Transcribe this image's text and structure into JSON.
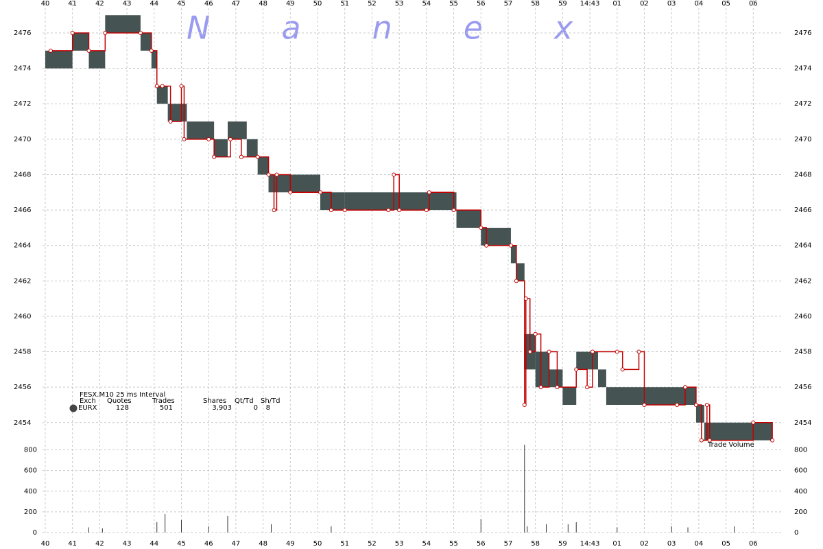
{
  "chart_data": {
    "type": "quote-trade",
    "watermark": "Nanex",
    "grid": true,
    "xlim": [
      39.9,
      67.05
    ],
    "xticks": [
      40,
      41,
      42,
      43,
      44,
      45,
      46,
      47,
      48,
      49,
      50,
      51,
      52,
      53,
      54,
      55,
      56,
      57,
      58,
      59,
      {
        "value": 60,
        "label": "14:43"
      },
      {
        "value": 61,
        "label": "01"
      },
      {
        "value": 62,
        "label": "02"
      },
      {
        "value": 63,
        "label": "03"
      },
      {
        "value": 64,
        "label": "04"
      },
      {
        "value": 65,
        "label": "05"
      },
      {
        "value": 66,
        "label": "06"
      }
    ],
    "ylim": [
      2453,
      2478
    ],
    "yticks": [
      2454,
      2456,
      2458,
      2460,
      2462,
      2464,
      2466,
      2468,
      2470,
      2472,
      2474,
      2476
    ],
    "volume_ylim": [
      0,
      870
    ],
    "volume_yticks": [
      0,
      200,
      400,
      600,
      800
    ],
    "quotes": {
      "color": "#465353",
      "edges": [
        40.0,
        41.0,
        41.6,
        42.2,
        43.5,
        43.9,
        44.1,
        44.5,
        45.2,
        46.2,
        46.7,
        47.4,
        47.8,
        48.2,
        49.0,
        50.1,
        51.0,
        53.0,
        55.1,
        56.0,
        57.1,
        57.3,
        57.6,
        58.0,
        58.5,
        59.0,
        59.5,
        60.3,
        60.6,
        63.9,
        64.2,
        66.7
      ],
      "bid": [
        2474,
        2475,
        2474,
        2476,
        2475,
        2474,
        2472,
        2471,
        2470,
        2469,
        2470,
        2469,
        2468,
        2467,
        2467,
        2466,
        2466,
        2466,
        2465,
        2464,
        2463,
        2462,
        2457,
        2456,
        2456,
        2455,
        2457,
        2456,
        2455,
        2454,
        2453
      ],
      "ask": [
        2475,
        2476,
        2475,
        2477,
        2476,
        2475,
        2473,
        2472,
        2471,
        2470,
        2471,
        2470,
        2469,
        2468,
        2468,
        2467,
        2467,
        2467,
        2466,
        2465,
        2464,
        2463,
        2459,
        2458,
        2457,
        2456,
        2458,
        2457,
        2456,
        2455,
        2454
      ]
    },
    "trades": {
      "color": "#c00000",
      "x": [
        40.2,
        41.0,
        41.6,
        42.2,
        43.5,
        43.9,
        44.1,
        44.3,
        44.6,
        45.0,
        45.1,
        46.0,
        46.2,
        46.8,
        47.2,
        47.8,
        48.2,
        48.4,
        48.5,
        49.0,
        50.1,
        50.5,
        51.0,
        52.6,
        52.8,
        53.0,
        54.0,
        54.1,
        55.0,
        56.0,
        56.2,
        57.1,
        57.3,
        57.6,
        57.65,
        57.8,
        58.0,
        58.2,
        58.5,
        58.8,
        59.5,
        59.9,
        60.1,
        61.0,
        61.2,
        61.8,
        62.0,
        63.2,
        63.5,
        63.9,
        64.1,
        64.3,
        64.4,
        66.0,
        66.7
      ],
      "values": [
        2475,
        2476,
        2475,
        2476,
        2476,
        2475,
        2473,
        2473,
        2471,
        2473,
        2470,
        2470,
        2469,
        2470,
        2469,
        2469,
        2468,
        2466,
        2468,
        2467,
        2467,
        2466,
        2466,
        2466,
        2468,
        2466,
        2466,
        2467,
        2466,
        2465,
        2464,
        2464,
        2462,
        2455,
        2461,
        2458,
        2459,
        2456,
        2458,
        2456,
        2457,
        2456,
        2458,
        2458,
        2457,
        2458,
        2455,
        2455,
        2456,
        2455,
        2453,
        2455,
        2453,
        2454,
        2453
      ]
    },
    "volume": {
      "color": "#333333",
      "label": "Trade Volume",
      "x": [
        41.6,
        42.1,
        44.1,
        44.4,
        45.0,
        46.0,
        46.7,
        48.3,
        50.5,
        56.0,
        57.6,
        57.7,
        58.4,
        59.2,
        59.5,
        61.0,
        63.0,
        63.6,
        65.3
      ],
      "values": [
        50,
        40,
        100,
        180,
        120,
        60,
        160,
        80,
        60,
        130,
        850,
        60,
        80,
        80,
        100,
        50,
        60,
        50,
        60
      ]
    },
    "summary": {
      "title": "FESX.M10 25 ms Interval",
      "headers": [
        "Exch",
        "Quotes",
        "Trades",
        "Shares",
        "Qt/Td",
        "Sh/Td"
      ],
      "row": [
        "EURX",
        "128",
        "501",
        "3,903",
        "0",
        "8"
      ]
    }
  }
}
